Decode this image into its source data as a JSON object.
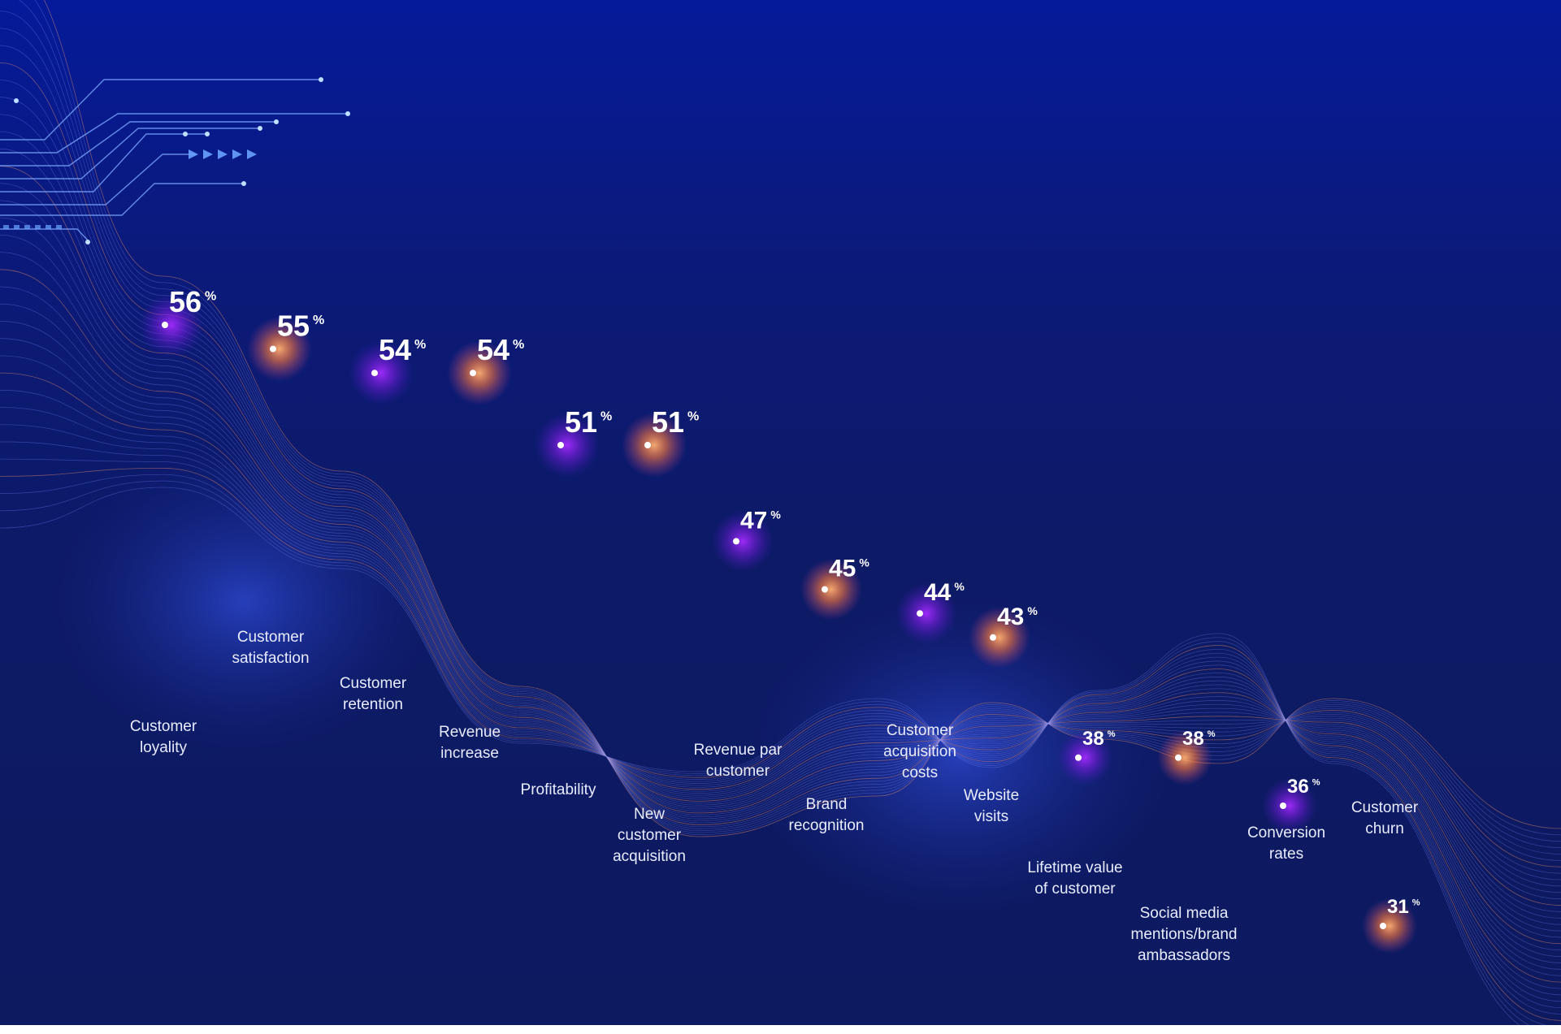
{
  "colors": {
    "background_top": "#051a9a",
    "background_bottom": "#0d1a60",
    "glow_purple": "#8a1cff",
    "glow_orange": "#ff8a3d",
    "stem": "#d6dcff",
    "wave": "#6f86ff"
  },
  "decoration": [
    "circuit-lines",
    "arrow-chevrons",
    "dash-dots",
    "flowing-wave-lines"
  ],
  "chart_data": {
    "type": "scatter",
    "style": "lollipop",
    "unit": "%",
    "title": "",
    "xlabel": "",
    "ylabel": "",
    "ylim": [
      28,
      58
    ],
    "grid": false,
    "legend": "none",
    "points": [
      {
        "category": "Customer loyality",
        "label_lines": [
          "Customer",
          "loyality"
        ],
        "value": 56,
        "glow": "purple"
      },
      {
        "category": "Customer satisfaction",
        "label_lines": [
          "Customer",
          "satisfaction"
        ],
        "value": 55,
        "glow": "orange"
      },
      {
        "category": "Customer retention",
        "label_lines": [
          "Customer",
          "retention"
        ],
        "value": 54,
        "glow": "purple"
      },
      {
        "category": "Revenue increase",
        "label_lines": [
          "Revenue",
          "increase"
        ],
        "value": 54,
        "glow": "orange"
      },
      {
        "category": "Profitability",
        "label_lines": [
          "Profitability"
        ],
        "value": 51,
        "glow": "purple"
      },
      {
        "category": "New customer acquisition",
        "label_lines": [
          "New",
          "customer",
          "acquisition"
        ],
        "value": 51,
        "glow": "orange"
      },
      {
        "category": "Revenue par customer",
        "label_lines": [
          "Revenue par",
          "customer"
        ],
        "value": 47,
        "glow": "purple"
      },
      {
        "category": "Brand recognition",
        "label_lines": [
          "Brand",
          "recognition"
        ],
        "value": 45,
        "glow": "orange"
      },
      {
        "category": "Customer acquisition costs",
        "label_lines": [
          "Customer",
          "acquisition",
          "costs"
        ],
        "value": 44,
        "glow": "purple"
      },
      {
        "category": "Website visits",
        "label_lines": [
          "Website",
          "visits"
        ],
        "value": 43,
        "glow": "orange"
      },
      {
        "category": "Lifetime value of customer",
        "label_lines": [
          "Lifetime value",
          "of customer"
        ],
        "value": 38,
        "glow": "purple"
      },
      {
        "category": "Social media mentions/brand ambassadors",
        "label_lines": [
          "Social media",
          "mentions/brand",
          "ambassadors"
        ],
        "value": 38,
        "glow": "orange"
      },
      {
        "category": "Conversion rates",
        "label_lines": [
          "Conversion",
          "rates"
        ],
        "value": 36,
        "glow": "purple"
      },
      {
        "category": "Customer churn",
        "label_lines": [
          "Customer",
          "churn"
        ],
        "value": 31,
        "glow": "orange"
      }
    ]
  }
}
